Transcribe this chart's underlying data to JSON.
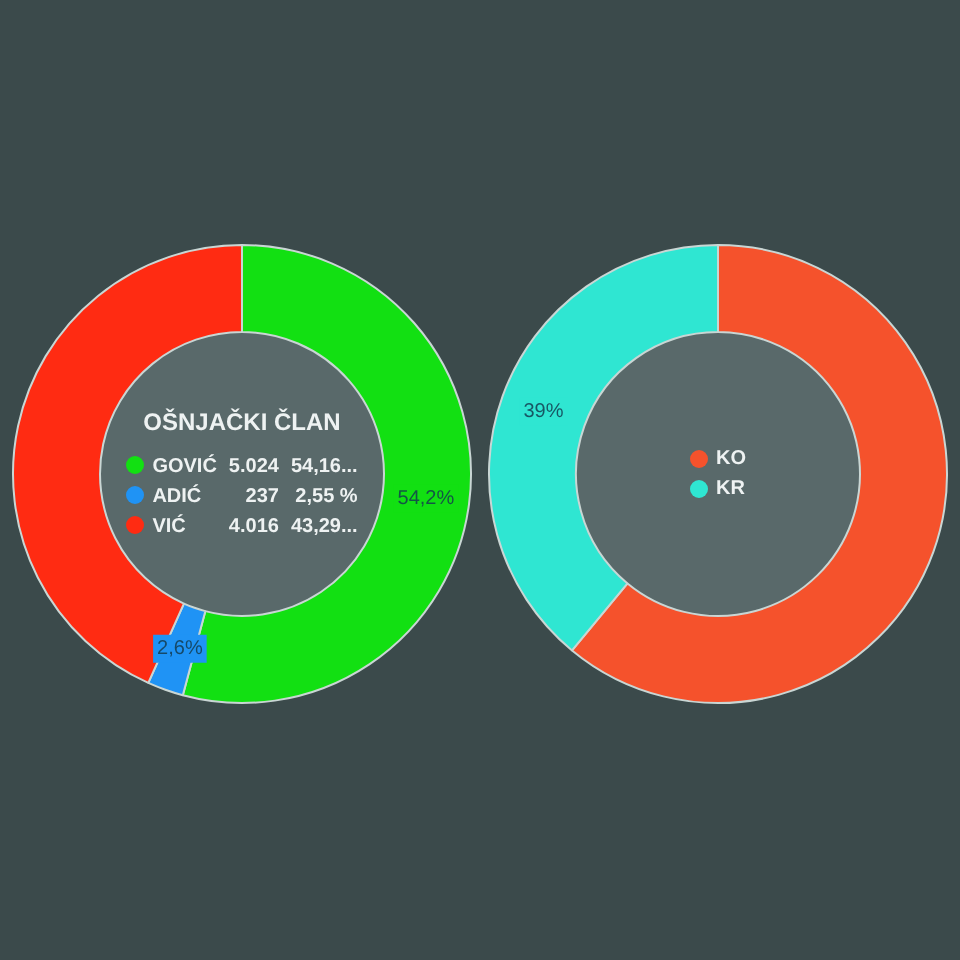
{
  "chart_data": [
    {
      "type": "donut",
      "title": "OŠNJAČKI ČLAN",
      "categories": [
        "GOVIĆ",
        "ADIĆ",
        "VIĆ"
      ],
      "values": [
        54.16,
        2.55,
        43.29
      ],
      "colors": [
        "#12e012",
        "#1f93f5",
        "#ff2b12"
      ],
      "value_labels": [
        "54,2%",
        "2,6%",
        null
      ],
      "annotations": [
        "5.024",
        "237",
        "4.016",
        "54,16...",
        "2,55 %",
        "43,29..."
      ],
      "legend": "center"
    },
    {
      "type": "donut",
      "categories": [
        "KO",
        "KR"
      ],
      "values": [
        61,
        39
      ],
      "colors": [
        "#f5522c",
        "#2fe6d2"
      ],
      "value_labels": [
        null,
        "39%"
      ],
      "legend": "center"
    }
  ]
}
